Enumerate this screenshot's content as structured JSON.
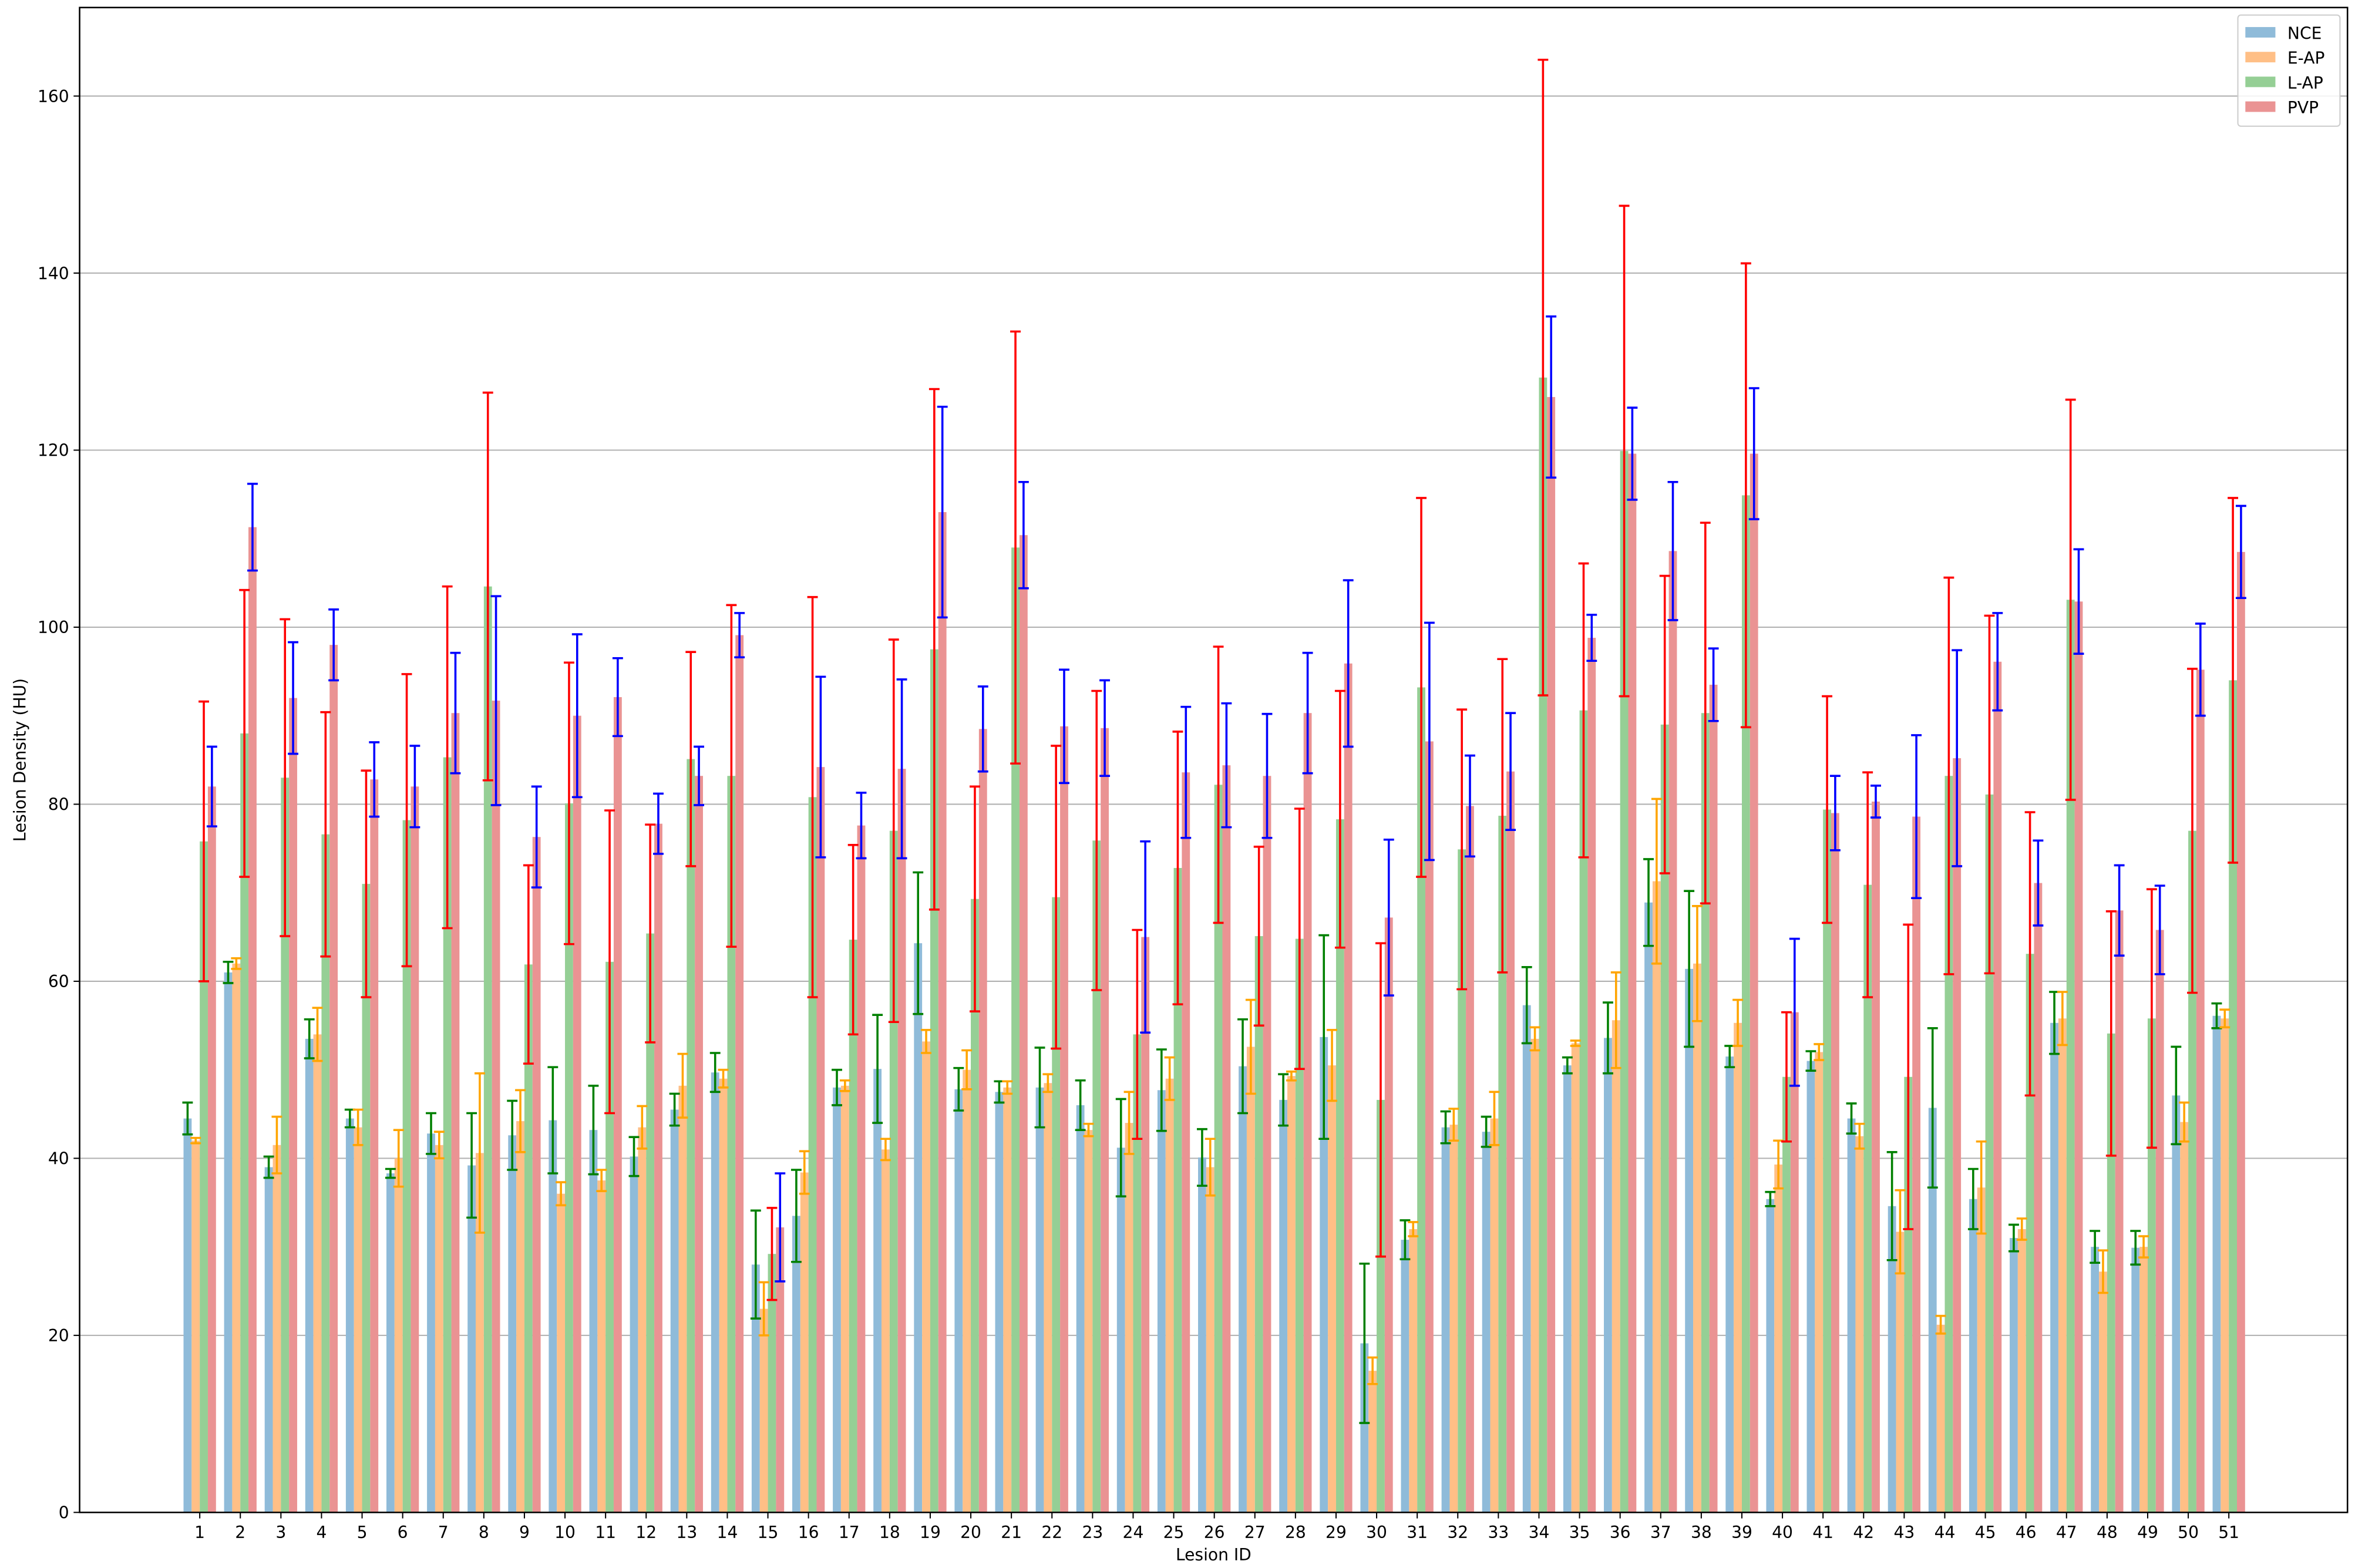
{
  "chart_data": {
    "type": "bar",
    "x_label": "Lesion ID",
    "y_label": "Lesion Density (HU)",
    "categories": [
      "1",
      "2",
      "3",
      "4",
      "5",
      "6",
      "7",
      "8",
      "9",
      "10",
      "11",
      "12",
      "13",
      "14",
      "15",
      "16",
      "17",
      "18",
      "19",
      "20",
      "21",
      "22",
      "23",
      "24",
      "25",
      "26",
      "27",
      "28",
      "29",
      "30",
      "31",
      "32",
      "33",
      "34",
      "35",
      "36",
      "37",
      "38",
      "39",
      "40",
      "41",
      "42",
      "43",
      "44",
      "45",
      "46",
      "47",
      "48",
      "49",
      "50",
      "51"
    ],
    "series": [
      {
        "name": "NCE",
        "color": "#8fbbd9",
        "error_color": "#008000",
        "values": [
          44.5,
          61,
          39,
          53.5,
          44.5,
          38.3,
          42.8,
          39.2,
          42.6,
          44.3,
          43.2,
          40.2,
          45.5,
          49.7,
          28,
          33.5,
          48,
          50.1,
          64.3,
          47.8,
          47.5,
          48,
          46,
          41.2,
          47.7,
          40.1,
          50.4,
          46.6,
          53.7,
          19.1,
          30.8,
          43.5,
          43,
          57.3,
          50.5,
          53.6,
          68.9,
          61.4,
          51.5,
          35.4,
          51,
          44.5,
          34.6,
          45.7,
          35.4,
          31,
          55.3,
          30,
          29.9,
          47.1,
          56.1
        ],
        "errors": [
          1.8,
          1.2,
          1.2,
          2.2,
          1,
          0.5,
          2.3,
          5.9,
          3.9,
          6,
          5,
          2.2,
          1.8,
          2.2,
          6.1,
          5.2,
          2,
          6.1,
          8,
          2.4,
          1.2,
          4.5,
          2.8,
          5.5,
          4.6,
          3.2,
          5.3,
          2.9,
          11.5,
          9,
          2.2,
          1.8,
          1.7,
          4.3,
          0.9,
          4,
          4.9,
          8.8,
          1.2,
          0.8,
          1.1,
          1.7,
          6.1,
          9,
          3.4,
          1.5,
          3.5,
          1.8,
          1.9,
          5.5,
          1.4
        ]
      },
      {
        "name": "E-AP",
        "color": "#ffbf86",
        "error_color": "#ffa500",
        "values": [
          42,
          62,
          41.5,
          54,
          43.5,
          40,
          41.5,
          40.6,
          44.2,
          36,
          37.5,
          43.5,
          48.2,
          49,
          23,
          38.4,
          48.2,
          41,
          53.2,
          50,
          48,
          48.5,
          43.2,
          44,
          49,
          39,
          52.6,
          49.3,
          50.5,
          16,
          32,
          43.8,
          44.5,
          53.5,
          53,
          55.6,
          71.3,
          62,
          55.3,
          39.3,
          52,
          42.5,
          31.7,
          21.2,
          36.7,
          32,
          55.8,
          27.2,
          30,
          44.1,
          55.8
        ],
        "errors": [
          0.3,
          0.6,
          3.2,
          3,
          2,
          3.2,
          1.5,
          9,
          3.5,
          1.3,
          1.2,
          2.4,
          3.6,
          1,
          3,
          2.4,
          0.6,
          1.2,
          1.3,
          2.2,
          0.7,
          1,
          0.7,
          3.5,
          2.4,
          3.2,
          5.3,
          0.5,
          4,
          1.5,
          0.8,
          1.8,
          3,
          1.3,
          0.3,
          5.4,
          9.3,
          6.5,
          2.6,
          2.7,
          0.9,
          1.4,
          4.7,
          1,
          5.2,
          1.2,
          3,
          2.4,
          1.2,
          2.2,
          1
        ]
      },
      {
        "name": "L-AP",
        "color": "#95cf95",
        "error_color": "#ff0000",
        "values": [
          75.8,
          88,
          83,
          76.6,
          71,
          78.2,
          85.3,
          104.6,
          61.9,
          80.1,
          62.2,
          65.4,
          85.1,
          83.2,
          29.2,
          80.8,
          64.7,
          77,
          97.5,
          69.3,
          109,
          69.5,
          75.9,
          54,
          72.8,
          82.2,
          65.1,
          64.8,
          78.3,
          46.6,
          93.2,
          74.9,
          78.7,
          128.2,
          90.6,
          119.9,
          89,
          90.3,
          114.9,
          49.2,
          79.4,
          70.9,
          49.2,
          83.2,
          81.1,
          63.1,
          103.1,
          54.1,
          55.8,
          77,
          94
        ],
        "errors": [
          15.8,
          16.2,
          17.9,
          13.8,
          12.8,
          16.5,
          19.3,
          21.9,
          11.2,
          15.9,
          17.1,
          12.3,
          12.1,
          19.3,
          5.2,
          22.6,
          10.7,
          21.6,
          29.4,
          12.7,
          24.4,
          17.1,
          16.9,
          11.8,
          15.4,
          15.6,
          10.1,
          14.7,
          14.5,
          17.7,
          21.4,
          15.8,
          17.7,
          35.9,
          16.6,
          27.7,
          16.8,
          21.5,
          26.2,
          7.3,
          12.8,
          12.7,
          17.2,
          22.4,
          20.2,
          16,
          22.6,
          13.8,
          14.6,
          18.3,
          20.6
        ]
      },
      {
        "name": "PVP",
        "color": "#ea9393",
        "error_color": "#0000ff",
        "values": [
          82,
          111.3,
          92,
          98,
          82.8,
          82,
          90.3,
          91.7,
          76.3,
          90,
          92.1,
          77.8,
          83.2,
          99.1,
          32.2,
          84.2,
          77.6,
          84,
          113,
          88.5,
          110.4,
          88.8,
          88.6,
          65,
          83.6,
          84.4,
          83.2,
          90.3,
          95.9,
          67.2,
          87.1,
          79.8,
          83.7,
          126,
          98.8,
          119.6,
          108.6,
          93.5,
          119.6,
          56.5,
          79,
          80.3,
          78.6,
          85.2,
          96.1,
          71.1,
          102.9,
          68,
          65.8,
          95.2,
          108.5
        ],
        "errors": [
          4.5,
          4.9,
          6.3,
          4,
          4.2,
          4.6,
          6.8,
          11.8,
          5.7,
          9.2,
          4.4,
          3.4,
          3.3,
          2.5,
          6.1,
          10.2,
          3.7,
          10.1,
          11.9,
          4.8,
          6,
          6.4,
          5.4,
          10.8,
          7.4,
          7,
          7,
          6.8,
          9.4,
          8.8,
          13.4,
          5.7,
          6.6,
          9.1,
          2.6,
          5.2,
          7.8,
          4.1,
          7.4,
          8.3,
          4.2,
          1.8,
          9.2,
          12.2,
          5.5,
          4.8,
          5.9,
          5.1,
          5,
          5.2,
          5.2
        ]
      }
    ],
    "ylim": [
      0,
      170
    ],
    "yticks": [
      0,
      20,
      40,
      60,
      80,
      100,
      120,
      140,
      160
    ],
    "grid": true,
    "legend": "upper right"
  }
}
